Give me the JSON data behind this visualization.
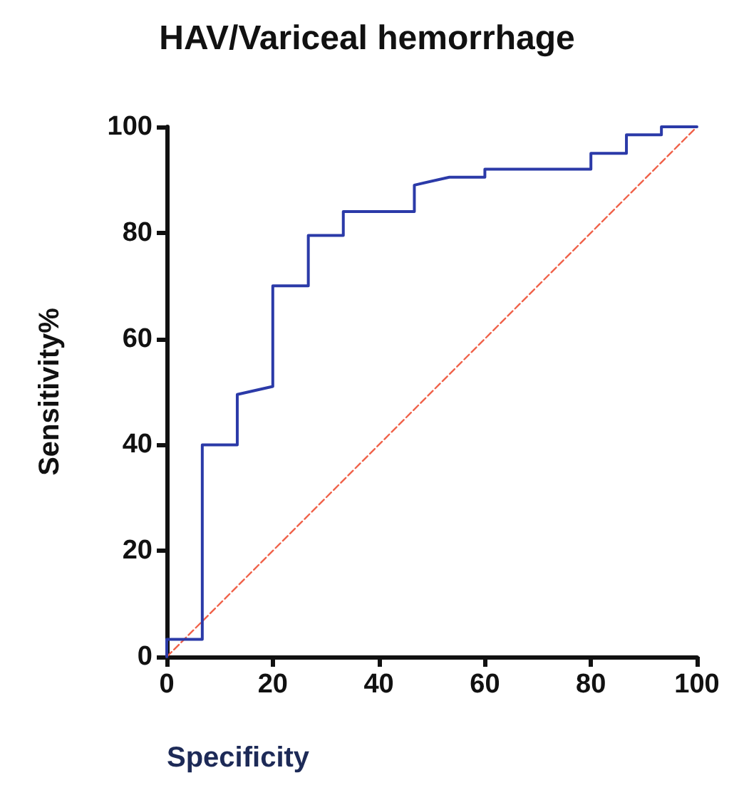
{
  "chart_data": {
    "type": "line",
    "title": "HAV/Variceal hemorrhage",
    "xlabel": "Specificity",
    "ylabel": "Sensitivity%",
    "xlim": [
      0,
      100
    ],
    "ylim": [
      0,
      100
    ],
    "xticks": [
      0,
      20,
      40,
      60,
      80,
      100
    ],
    "yticks": [
      0,
      20,
      40,
      60,
      80,
      100
    ],
    "marker": "none",
    "series": [
      {
        "color": "#2b3aa8",
        "line_style": "solid",
        "x": [
          0,
          0,
          6.7,
          6.7,
          13.3,
          13.3,
          20,
          20,
          26.7,
          26.7,
          33.3,
          33.3,
          46.7,
          46.7,
          53.3,
          60,
          60,
          80,
          80,
          86.7,
          86.7,
          93.3,
          93.3,
          100
        ],
        "values": [
          0,
          3.3,
          3.3,
          40,
          40,
          49.5,
          51,
          70,
          70,
          79.5,
          79.5,
          84,
          84,
          89,
          90.5,
          90.5,
          92,
          92,
          95,
          95,
          98.5,
          98.5,
          100,
          100
        ]
      },
      {
        "color": "#f0624a",
        "line_style": "dashed",
        "x": [
          0,
          100
        ],
        "values": [
          0,
          100
        ]
      }
    ]
  }
}
